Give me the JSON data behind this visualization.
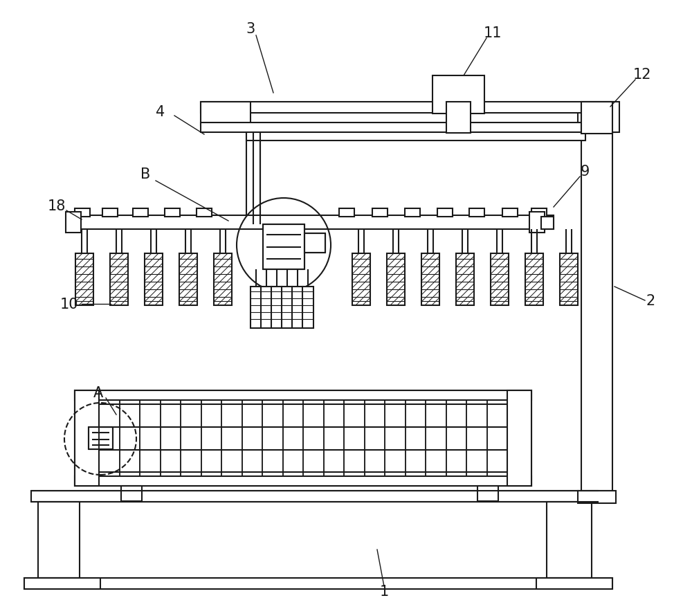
{
  "bg_color": "#ffffff",
  "line_color": "#1a1a1a",
  "lw": 1.5,
  "fig_width": 10.0,
  "fig_height": 8.78
}
